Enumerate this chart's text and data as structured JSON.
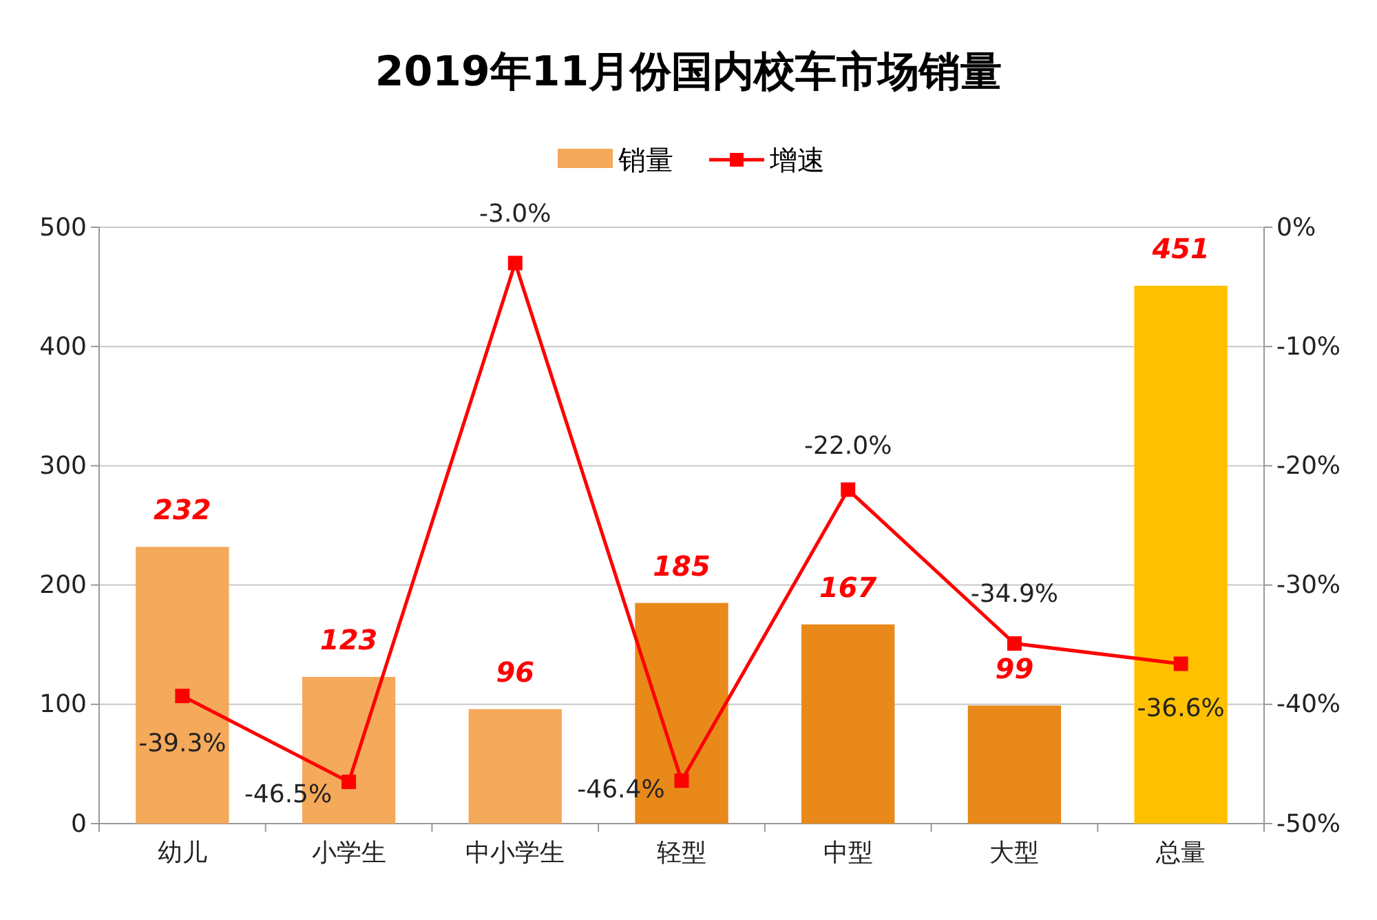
{
  "chart_data": {
    "type": "bar",
    "title": "2019年11月份国内校车市场销量",
    "categories": [
      "幼儿",
      "小学生",
      "中小学生",
      "轻型",
      "中型",
      "大型",
      "总量"
    ],
    "series": [
      {
        "name": "销量",
        "color": "#f5a95a",
        "colors": [
          "#f5a95a",
          "#f5a95a",
          "#f5a95a",
          "#e8891a",
          "#e8891a",
          "#e8891a",
          "#ffc000"
        ],
        "values": [
          232,
          123,
          96,
          185,
          167,
          99,
          451
        ],
        "value_labels": [
          "232",
          "123",
          "96",
          "185",
          "167",
          "99",
          "451"
        ]
      },
      {
        "name": "增速",
        "type": "line",
        "axis": "y2",
        "color": "#ff0000",
        "marker": "square",
        "values": [
          -39.3,
          -46.5,
          -3.0,
          -46.4,
          -22.0,
          -34.9,
          -36.6
        ],
        "value_labels": [
          "-39.3%",
          "-46.5%",
          "-3.0%",
          "-46.4%",
          "-22.0%",
          "-34.9%",
          "-36.6%"
        ]
      }
    ],
    "ylim": [
      0,
      500
    ],
    "yticks": [
      0,
      100,
      200,
      300,
      400,
      500
    ],
    "y2lim": [
      -50,
      0
    ],
    "y2ticks": [
      {
        "value": 0,
        "label": "0%"
      },
      {
        "value": -10,
        "label": "-10%"
      },
      {
        "value": -20,
        "label": "-20%"
      },
      {
        "value": -30,
        "label": "-30%"
      },
      {
        "value": -40,
        "label": "-40%"
      },
      {
        "value": -50,
        "label": "-50%"
      }
    ],
    "grid": "y",
    "legend": "top"
  }
}
